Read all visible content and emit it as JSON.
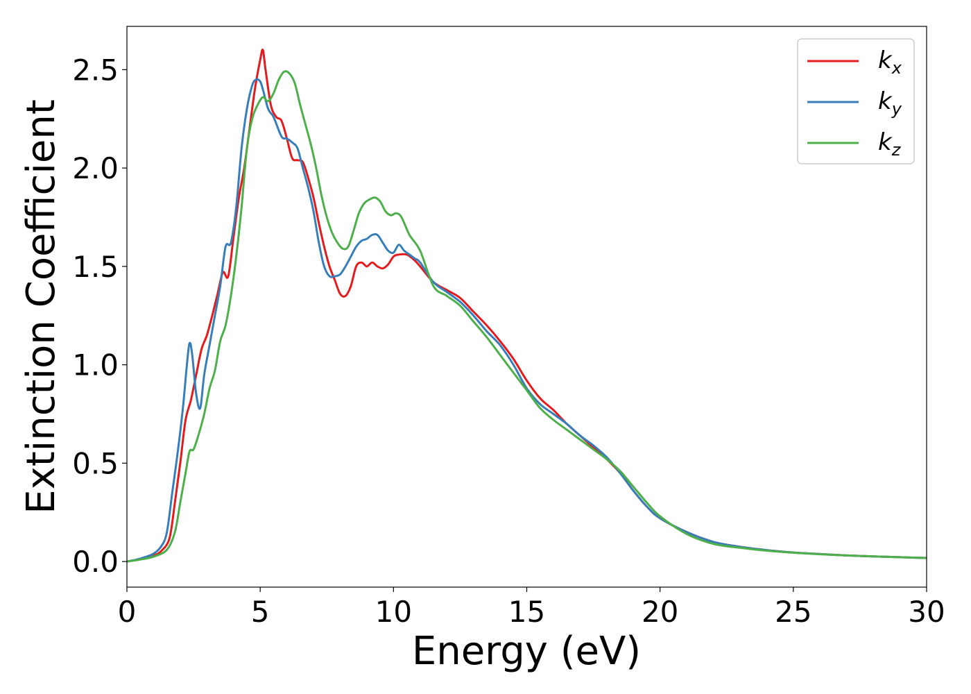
{
  "chart_data": {
    "type": "line",
    "xlabel": "Energy (eV)",
    "ylabel": "Extinction Coefficient",
    "xlim": [
      0,
      30
    ],
    "ylim": [
      -0.13,
      2.72
    ],
    "xticks": [
      0,
      5,
      10,
      15,
      20,
      25,
      30
    ],
    "xtick_labels": [
      "0",
      "5",
      "10",
      "15",
      "20",
      "25",
      "30"
    ],
    "yticks": [
      0.0,
      0.5,
      1.0,
      1.5,
      2.0,
      2.5
    ],
    "ytick_labels": [
      "0.0",
      "0.5",
      "1.0",
      "1.5",
      "2.0",
      "2.5"
    ],
    "grid": false,
    "legend_position": "top-right",
    "series": [
      {
        "name": "k",
        "name_sub": "x",
        "color": "#e41a1c",
        "x": [
          0,
          0.5,
          1.0,
          1.3,
          1.6,
          1.8,
          2.0,
          2.2,
          2.4,
          2.6,
          2.8,
          3.0,
          3.2,
          3.4,
          3.6,
          3.8,
          4.0,
          4.2,
          4.4,
          4.6,
          4.8,
          5.0,
          5.1,
          5.2,
          5.4,
          5.6,
          5.8,
          6.0,
          6.2,
          6.4,
          6.6,
          6.8,
          7.0,
          7.2,
          7.4,
          7.6,
          7.8,
          8.0,
          8.2,
          8.4,
          8.6,
          8.8,
          9.0,
          9.2,
          9.4,
          9.6,
          9.8,
          10.0,
          10.2,
          10.5,
          10.8,
          11.0,
          11.5,
          12.0,
          12.5,
          13.0,
          13.5,
          14.0,
          14.5,
          15.0,
          15.5,
          16.0,
          16.5,
          17.0,
          17.5,
          18.0,
          18.5,
          19.0,
          19.5,
          20.0,
          21.0,
          22.0,
          23.0,
          24.0,
          25.0,
          26.0,
          27.0,
          28.0,
          29.0,
          30.0
        ],
        "y": [
          0.0,
          0.012,
          0.03,
          0.055,
          0.12,
          0.3,
          0.5,
          0.72,
          0.82,
          0.95,
          1.08,
          1.15,
          1.25,
          1.36,
          1.47,
          1.45,
          1.65,
          1.85,
          2.0,
          2.2,
          2.4,
          2.55,
          2.6,
          2.5,
          2.32,
          2.26,
          2.24,
          2.15,
          2.05,
          2.04,
          2.03,
          1.95,
          1.85,
          1.72,
          1.6,
          1.5,
          1.43,
          1.36,
          1.35,
          1.4,
          1.5,
          1.52,
          1.5,
          1.52,
          1.5,
          1.49,
          1.51,
          1.55,
          1.56,
          1.56,
          1.53,
          1.5,
          1.42,
          1.38,
          1.34,
          1.27,
          1.2,
          1.12,
          1.03,
          0.92,
          0.83,
          0.77,
          0.7,
          0.64,
          0.58,
          0.52,
          0.45,
          0.36,
          0.28,
          0.22,
          0.15,
          0.1,
          0.075,
          0.058,
          0.046,
          0.038,
          0.031,
          0.026,
          0.022,
          0.018
        ]
      },
      {
        "name": "k",
        "name_sub": "y",
        "color": "#377eb8",
        "x": [
          0,
          0.5,
          1.0,
          1.3,
          1.5,
          1.7,
          1.9,
          2.1,
          2.25,
          2.35,
          2.45,
          2.6,
          2.75,
          2.9,
          3.1,
          3.3,
          3.5,
          3.7,
          3.9,
          4.1,
          4.3,
          4.5,
          4.7,
          4.85,
          5.0,
          5.1,
          5.3,
          5.5,
          5.8,
          6.0,
          6.2,
          6.4,
          6.6,
          6.8,
          7.0,
          7.2,
          7.4,
          7.6,
          7.8,
          8.0,
          8.2,
          8.4,
          8.6,
          8.8,
          9.0,
          9.2,
          9.4,
          9.6,
          9.8,
          10.0,
          10.2,
          10.4,
          10.6,
          10.8,
          11.0,
          11.5,
          12.0,
          12.5,
          13.0,
          13.5,
          14.0,
          14.5,
          15.0,
          15.5,
          16.0,
          16.5,
          17.0,
          17.5,
          18.0,
          18.5,
          19.0,
          19.5,
          20.0,
          21.0,
          22.0,
          23.0,
          24.0,
          25.0,
          26.0,
          27.0,
          28.0,
          29.0,
          30.0
        ],
        "y": [
          0.0,
          0.015,
          0.04,
          0.08,
          0.15,
          0.35,
          0.55,
          0.78,
          1.0,
          1.11,
          1.05,
          0.85,
          0.78,
          0.95,
          1.1,
          1.25,
          1.4,
          1.6,
          1.62,
          1.8,
          2.1,
          2.3,
          2.42,
          2.45,
          2.44,
          2.4,
          2.3,
          2.26,
          2.16,
          2.15,
          2.13,
          2.1,
          2.0,
          1.9,
          1.78,
          1.62,
          1.5,
          1.45,
          1.45,
          1.46,
          1.5,
          1.55,
          1.6,
          1.63,
          1.64,
          1.66,
          1.66,
          1.62,
          1.58,
          1.57,
          1.61,
          1.58,
          1.56,
          1.54,
          1.52,
          1.42,
          1.37,
          1.32,
          1.25,
          1.17,
          1.1,
          1.0,
          0.88,
          0.8,
          0.75,
          0.7,
          0.64,
          0.59,
          0.53,
          0.45,
          0.36,
          0.28,
          0.22,
          0.15,
          0.1,
          0.075,
          0.058,
          0.046,
          0.038,
          0.031,
          0.026,
          0.022,
          0.018
        ]
      },
      {
        "name": "k",
        "name_sub": "z",
        "color": "#4daf4a",
        "x": [
          0,
          0.5,
          1.0,
          1.5,
          1.8,
          2.0,
          2.2,
          2.35,
          2.5,
          2.7,
          2.9,
          3.1,
          3.3,
          3.5,
          3.7,
          3.9,
          4.1,
          4.3,
          4.5,
          4.7,
          4.9,
          5.1,
          5.3,
          5.5,
          5.7,
          5.9,
          6.1,
          6.3,
          6.5,
          6.7,
          6.9,
          7.1,
          7.3,
          7.5,
          7.7,
          7.9,
          8.1,
          8.3,
          8.5,
          8.7,
          8.9,
          9.1,
          9.3,
          9.5,
          9.7,
          9.9,
          10.1,
          10.3,
          10.6,
          11.0,
          11.5,
          12.0,
          12.5,
          13.0,
          13.5,
          14.0,
          14.5,
          15.0,
          15.5,
          16.0,
          16.5,
          17.0,
          17.5,
          18.0,
          18.5,
          19.0,
          19.5,
          20.0,
          21.0,
          22.0,
          23.0,
          24.0,
          25.0,
          26.0,
          27.0,
          28.0,
          29.0,
          30.0
        ],
        "y": [
          0.0,
          0.01,
          0.025,
          0.06,
          0.15,
          0.3,
          0.45,
          0.56,
          0.57,
          0.65,
          0.75,
          0.88,
          0.97,
          1.12,
          1.2,
          1.35,
          1.55,
          1.8,
          2.1,
          2.25,
          2.32,
          2.36,
          2.34,
          2.38,
          2.45,
          2.49,
          2.48,
          2.43,
          2.32,
          2.22,
          2.12,
          2.0,
          1.86,
          1.75,
          1.67,
          1.62,
          1.59,
          1.6,
          1.68,
          1.77,
          1.82,
          1.84,
          1.85,
          1.83,
          1.78,
          1.76,
          1.77,
          1.75,
          1.66,
          1.58,
          1.4,
          1.35,
          1.3,
          1.22,
          1.14,
          1.05,
          0.96,
          0.87,
          0.78,
          0.72,
          0.67,
          0.62,
          0.57,
          0.52,
          0.46,
          0.38,
          0.3,
          0.23,
          0.14,
          0.09,
          0.07,
          0.055,
          0.045,
          0.037,
          0.031,
          0.026,
          0.022,
          0.018
        ]
      }
    ]
  }
}
